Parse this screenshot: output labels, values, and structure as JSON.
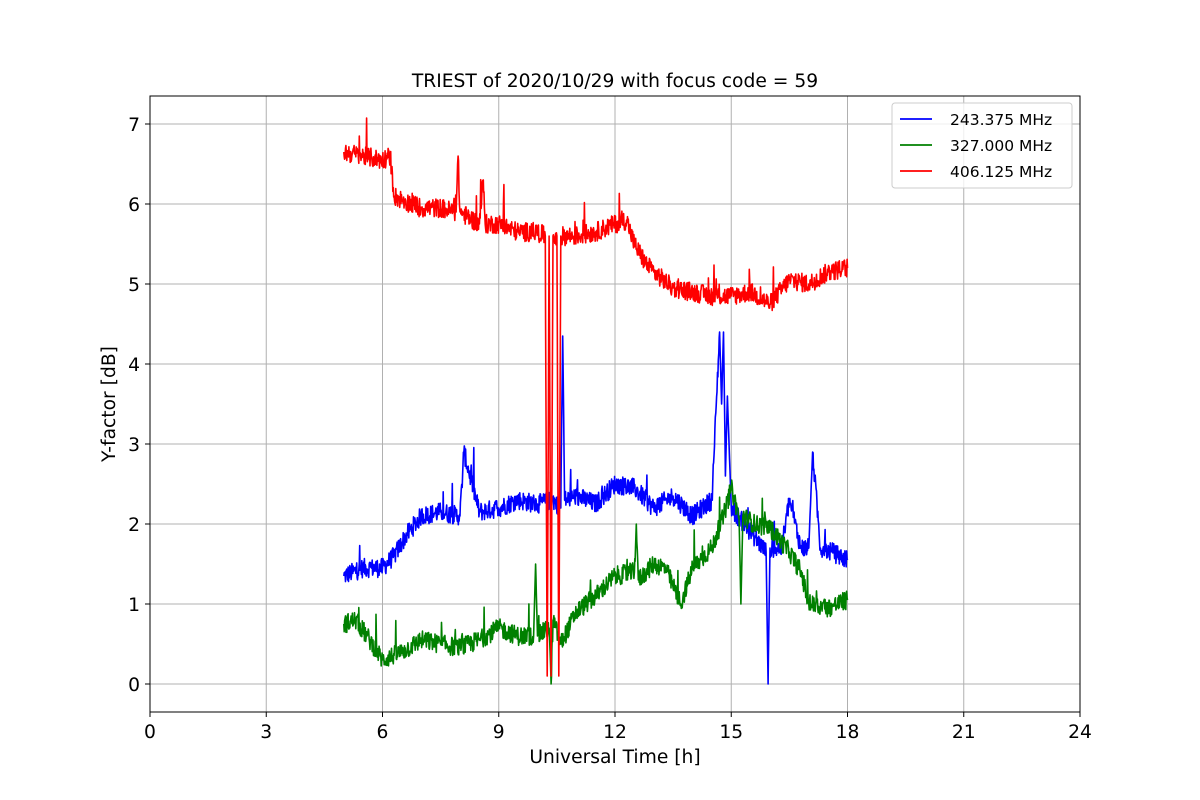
{
  "chart_data": {
    "type": "line",
    "title": "TRIEST of 2020/10/29 with focus code = 59",
    "xlabel": "Universal Time [h]",
    "ylabel": "Y-factor [dB]",
    "xlim": [
      0,
      24
    ],
    "ylim": [
      -0.35,
      7.35
    ],
    "xticks": [
      0,
      3,
      6,
      9,
      12,
      15,
      18,
      21,
      24
    ],
    "xtick_labels": [
      "0",
      "3",
      "6",
      "9",
      "12",
      "15",
      "18",
      "21",
      "24"
    ],
    "yticks": [
      0,
      1,
      2,
      3,
      4,
      5,
      6,
      7
    ],
    "ytick_labels": [
      "0",
      "1",
      "2",
      "3",
      "4",
      "5",
      "6",
      "7"
    ],
    "grid": true,
    "legend_position": "top-right",
    "series": [
      {
        "name": "243.375 MHz",
        "color": "#0000ff",
        "x": [
          5.0,
          5.5,
          6.0,
          6.3,
          6.6,
          7.0,
          7.5,
          8.0,
          8.1,
          8.5,
          9.0,
          9.5,
          10.0,
          10.4,
          10.6,
          10.65,
          10.7,
          11.0,
          11.5,
          12.0,
          12.5,
          13.0,
          13.5,
          14.0,
          14.5,
          14.7,
          14.75,
          14.8,
          14.85,
          14.9,
          15.0,
          15.5,
          15.9,
          15.95,
          16.0,
          16.3,
          16.5,
          16.8,
          17.0,
          17.1,
          17.3,
          17.6,
          18.0
        ],
        "y": [
          1.35,
          1.45,
          1.45,
          1.6,
          1.85,
          2.1,
          2.15,
          2.1,
          2.9,
          2.15,
          2.2,
          2.3,
          2.25,
          2.3,
          2.2,
          4.35,
          2.3,
          2.35,
          2.25,
          2.5,
          2.45,
          2.2,
          2.35,
          2.1,
          2.3,
          4.4,
          3.5,
          4.4,
          2.6,
          3.6,
          2.2,
          1.9,
          1.65,
          0.0,
          1.7,
          1.7,
          2.3,
          1.7,
          1.7,
          2.9,
          1.7,
          1.65,
          1.55
        ]
      },
      {
        "name": "327.000 MHz",
        "color": "#008000",
        "x": [
          5.0,
          5.3,
          5.6,
          6.0,
          6.5,
          7.0,
          7.5,
          8.0,
          8.5,
          9.0,
          9.5,
          9.9,
          9.95,
          10.0,
          10.3,
          10.35,
          10.4,
          10.6,
          11.0,
          11.5,
          12.0,
          12.5,
          12.55,
          12.6,
          13.0,
          13.3,
          13.7,
          14.0,
          14.5,
          14.8,
          15.0,
          15.2,
          15.25,
          15.3,
          15.6,
          16.0,
          16.5,
          16.8,
          17.0,
          17.5,
          18.0
        ],
        "y": [
          0.75,
          0.8,
          0.6,
          0.3,
          0.4,
          0.55,
          0.5,
          0.45,
          0.55,
          0.7,
          0.6,
          0.6,
          1.5,
          0.6,
          0.7,
          0.0,
          0.8,
          0.5,
          0.9,
          1.1,
          1.35,
          1.4,
          2.0,
          1.3,
          1.5,
          1.45,
          1.0,
          1.45,
          1.7,
          2.1,
          2.45,
          2.1,
          1.0,
          2.1,
          2.0,
          1.95,
          1.65,
          1.4,
          1.0,
          0.95,
          1.05
        ]
      },
      {
        "name": "406.125 MHz",
        "color": "#ff0000",
        "x": [
          5.0,
          5.5,
          6.0,
          6.2,
          6.3,
          6.5,
          7.0,
          7.5,
          7.9,
          7.95,
          8.0,
          8.5,
          8.6,
          8.65,
          9.0,
          9.5,
          10.0,
          10.2,
          10.25,
          10.3,
          10.35,
          10.4,
          10.5,
          10.55,
          10.6,
          11.0,
          11.5,
          12.0,
          12.3,
          12.5,
          12.8,
          13.0,
          13.5,
          14.0,
          14.5,
          15.0,
          15.5,
          16.0,
          16.5,
          17.0,
          17.5,
          18.0
        ],
        "y": [
          6.65,
          6.6,
          6.55,
          6.6,
          6.1,
          6.05,
          5.95,
          5.95,
          5.9,
          6.6,
          5.9,
          5.75,
          6.3,
          5.75,
          5.75,
          5.65,
          5.65,
          5.6,
          0.1,
          5.6,
          0.1,
          5.6,
          5.6,
          0.1,
          5.6,
          5.6,
          5.65,
          5.75,
          5.8,
          5.5,
          5.25,
          5.15,
          4.95,
          4.9,
          4.85,
          4.85,
          4.9,
          4.75,
          5.05,
          5.0,
          5.15,
          5.2
        ]
      }
    ]
  }
}
